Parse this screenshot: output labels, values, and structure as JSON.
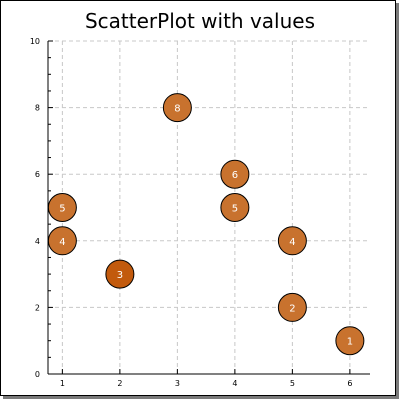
{
  "chart_data": {
    "type": "scatter",
    "title": "ScatterPlot with values",
    "xlabel": "",
    "ylabel": "",
    "xlim": [
      0.75,
      6.35
    ],
    "ylim": [
      0,
      10
    ],
    "xticks": [
      1,
      2,
      3,
      4,
      5,
      6
    ],
    "yticks": [
      0,
      2,
      4,
      6,
      8,
      10
    ],
    "y_minor_step": 0.5,
    "grid": true,
    "points": [
      {
        "x": 1,
        "y": 5,
        "label": "5"
      },
      {
        "x": 1,
        "y": 4,
        "label": "4"
      },
      {
        "x": 2,
        "y": 3,
        "label": "3"
      },
      {
        "x": 3,
        "y": 8,
        "label": "8"
      },
      {
        "x": 4,
        "y": 6,
        "label": "6"
      },
      {
        "x": 4,
        "y": 5,
        "label": "5"
      },
      {
        "x": 5,
        "y": 4,
        "label": "4"
      },
      {
        "x": 5,
        "y": 2,
        "label": "2"
      },
      {
        "x": 6,
        "y": 1,
        "label": "1"
      }
    ],
    "colors": {
      "marker_fill": "#c8722e",
      "marker_fill_highlight": "#c25a0d",
      "marker_stroke": "#000000",
      "marker_label": "#ffffff",
      "grid": "#c8c8c8",
      "axis": "#000000",
      "frame": "#000000",
      "shadow": "#7a7a7a"
    }
  }
}
